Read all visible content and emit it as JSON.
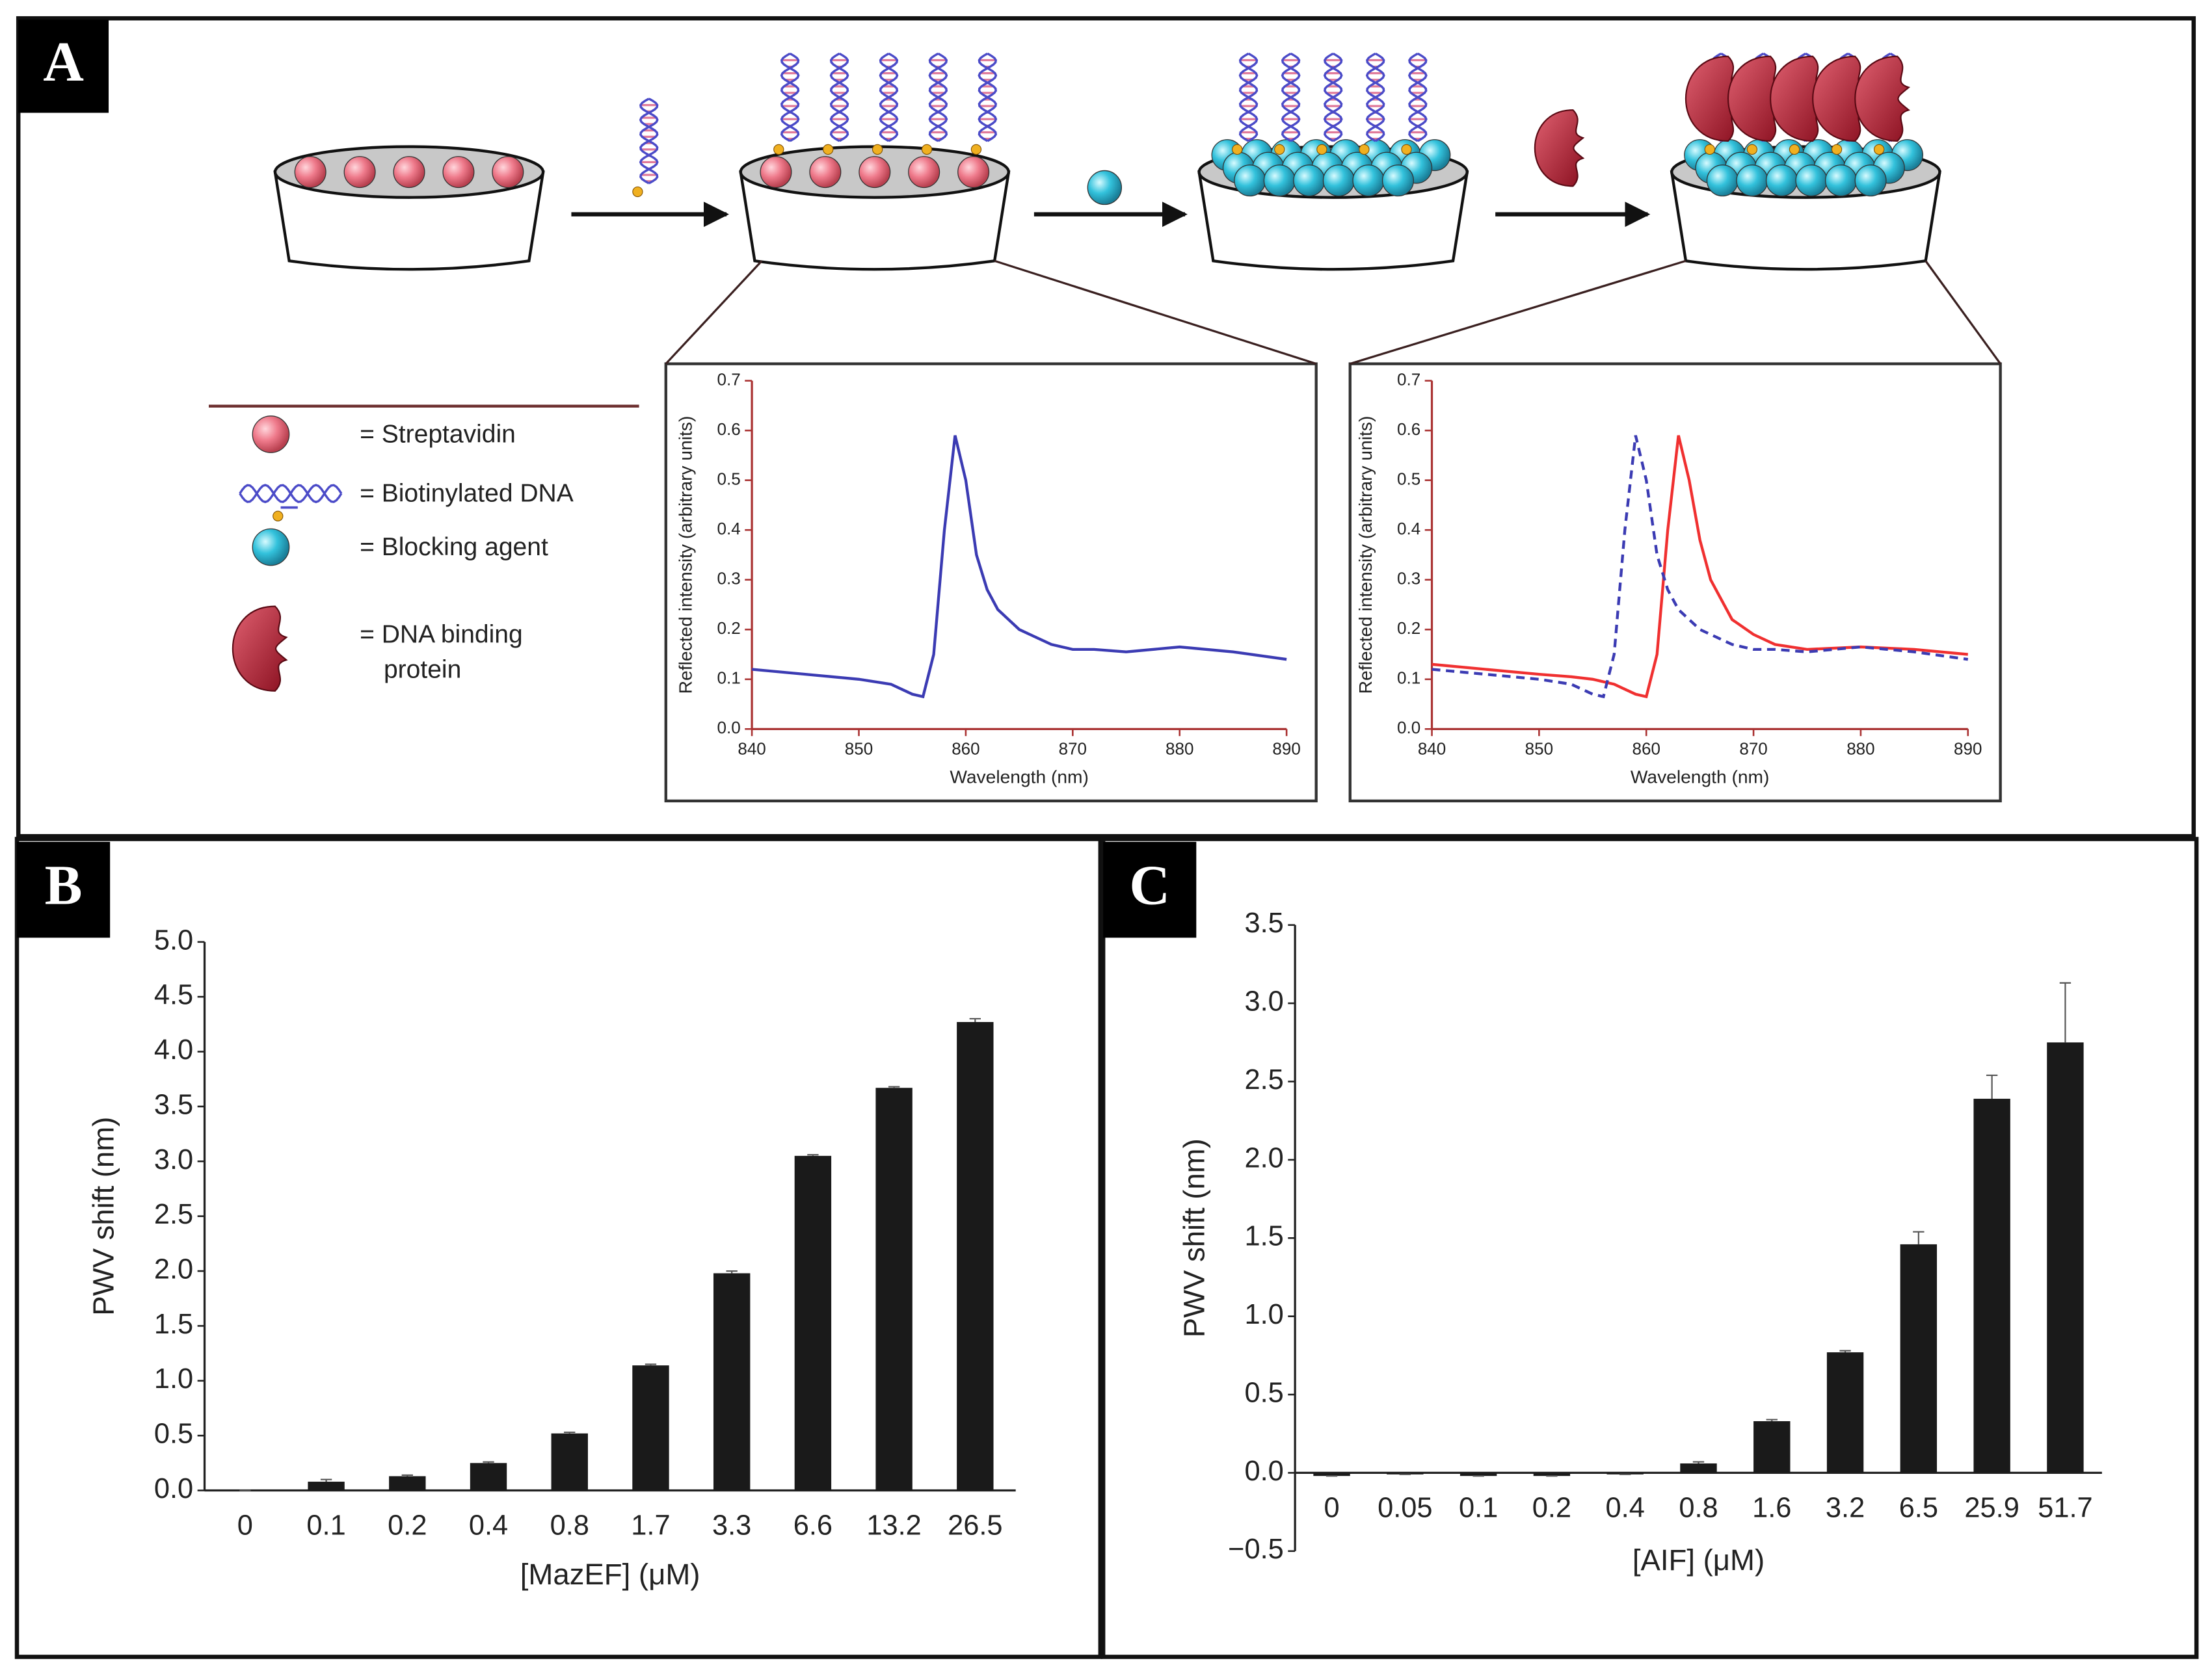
{
  "panel_labels": [
    "A",
    "B",
    "C"
  ],
  "legend": [
    "= Streptavidin",
    "= Biotinylated DNA",
    "= Blocking agent",
    [
      "= DNA binding",
      "protein"
    ]
  ],
  "chart_data": [
    {
      "type": "line",
      "x_label": "Wavelength (nm)",
      "y_label": "Reflected intensity (arbitrary units)",
      "x": [
        840,
        845,
        850,
        853,
        855,
        856,
        857,
        858,
        859,
        860,
        861,
        862,
        863,
        864,
        865,
        866,
        868,
        870,
        872,
        875,
        880,
        885,
        890
      ],
      "series": [
        {
          "color": "#3b3bb3",
          "dashed": false,
          "values": [
            0.12,
            0.11,
            0.1,
            0.09,
            0.07,
            0.065,
            0.15,
            0.4,
            0.59,
            0.5,
            0.35,
            0.28,
            0.24,
            0.22,
            0.2,
            0.19,
            0.17,
            0.16,
            0.16,
            0.155,
            0.165,
            0.155,
            0.14
          ]
        }
      ],
      "xlim": [
        840,
        890
      ],
      "xticks": [
        840,
        850,
        860,
        870,
        880,
        890
      ],
      "ylim": [
        0,
        0.7
      ],
      "yticks": [
        {
          "value": 0,
          "label": "0.0"
        },
        0.1,
        0.2,
        0.3,
        0.4,
        0.5,
        0.6,
        0.7
      ]
    },
    {
      "type": "line",
      "x_label": "Wavelength (nm)",
      "y_label": "Reflected intensity (arbitrary units)",
      "x": [
        840,
        845,
        850,
        853,
        855,
        856,
        857,
        858,
        859,
        860,
        861,
        862,
        863,
        864,
        865,
        866,
        868,
        870,
        872,
        875,
        880,
        885,
        890
      ],
      "series": [
        {
          "color": "#f03030",
          "dashed": false,
          "values": [
            0.13,
            0.12,
            0.11,
            0.105,
            0.1,
            0.095,
            0.09,
            0.08,
            0.07,
            0.065,
            0.15,
            0.4,
            0.59,
            0.5,
            0.38,
            0.3,
            0.22,
            0.19,
            0.17,
            0.16,
            0.165,
            0.16,
            0.15
          ]
        },
        {
          "color": "#3b3bb3",
          "dashed": true,
          "values": [
            0.12,
            0.11,
            0.1,
            0.09,
            0.07,
            0.065,
            0.15,
            0.4,
            0.59,
            0.5,
            0.35,
            0.28,
            0.24,
            0.22,
            0.2,
            0.19,
            0.17,
            0.16,
            0.16,
            0.155,
            0.165,
            0.155,
            0.14
          ]
        }
      ],
      "xlim": [
        840,
        890
      ],
      "xticks": [
        840,
        850,
        860,
        870,
        880,
        890
      ],
      "ylim": [
        0,
        0.7
      ],
      "yticks": [
        {
          "value": 0,
          "label": "0.0"
        },
        0.1,
        0.2,
        0.3,
        0.4,
        0.5,
        0.6,
        0.7
      ]
    },
    {
      "type": "bar",
      "x_label": "[MazEF] (μM)",
      "y_label": "PWV shift (nm)",
      "color": "#1a1a1a",
      "categories": [
        "0",
        "0.1",
        "0.2",
        "0.4",
        "0.8",
        "1.7",
        "3.3",
        "6.6",
        "13.2",
        "26.5"
      ],
      "values": [
        0,
        0.08,
        0.13,
        0.25,
        0.52,
        1.14,
        1.98,
        3.05,
        3.67,
        4.27
      ],
      "errors": [
        0,
        0.02,
        0.01,
        0.01,
        0.01,
        0.01,
        0.02,
        0.01,
        0.01,
        0.03
      ],
      "ylim": [
        0,
        5
      ],
      "yticks": [
        {
          "value": 0,
          "label": "0.0"
        },
        0.5,
        {
          "value": 1,
          "label": "1.0"
        },
        1.5,
        {
          "value": 2,
          "label": "2.0"
        },
        2.5,
        {
          "value": 3,
          "label": "3.0"
        },
        3.5,
        {
          "value": 4,
          "label": "4.0"
        },
        4.5,
        {
          "value": 5,
          "label": "5.0"
        }
      ]
    },
    {
      "type": "bar",
      "x_label": "[AIF] (μM)",
      "y_label": "PWV shift (nm)",
      "color": "#1a1a1a",
      "categories": [
        "0",
        "0.05",
        "0.1",
        "0.2",
        "0.4",
        "0.8",
        "1.6",
        "3.2",
        "6.5",
        "25.9",
        "51.7"
      ],
      "values": [
        -0.02,
        -0.01,
        -0.02,
        -0.02,
        -0.01,
        0.06,
        0.33,
        0.77,
        1.46,
        2.39,
        2.75
      ],
      "errors": [
        0,
        0,
        0,
        0,
        0,
        0.01,
        0.01,
        0.01,
        0.08,
        0.15,
        0.38
      ],
      "ylim": [
        -0.5,
        3.5
      ],
      "yticks": [
        {
          "value": -0.5,
          "label": "−0.5"
        },
        {
          "value": 0,
          "label": "0.0"
        },
        0.5,
        {
          "value": 1,
          "label": "1.0"
        },
        1.5,
        {
          "value": 2,
          "label": "2.0"
        },
        2.5,
        {
          "value": 3,
          "label": "3.0"
        },
        3.5
      ]
    }
  ]
}
